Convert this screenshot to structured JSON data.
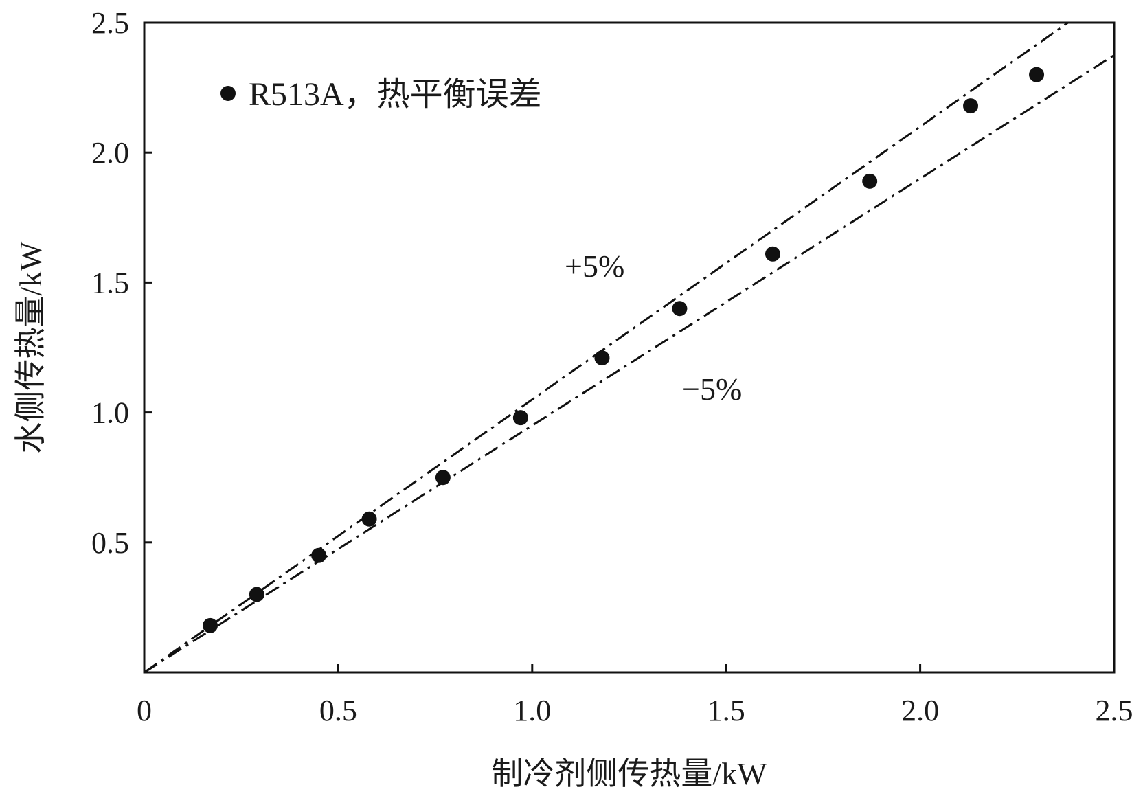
{
  "chart_data": {
    "type": "scatter",
    "title": "",
    "xlabel": "制冷剂侧传热量/kW",
    "ylabel": "水侧传热量/kW",
    "xlim": [
      0,
      2.5
    ],
    "ylim": [
      0,
      2.5
    ],
    "x_ticks": [
      {
        "value": 0,
        "label": "0"
      },
      {
        "value": 0.5,
        "label": "0.5"
      },
      {
        "value": 1.0,
        "label": "1.0"
      },
      {
        "value": 1.5,
        "label": "1.5"
      },
      {
        "value": 2.0,
        "label": "2.0"
      },
      {
        "value": 2.5,
        "label": "2.5"
      }
    ],
    "y_ticks": [
      {
        "value": 0.5,
        "label": "0.5"
      },
      {
        "value": 1.0,
        "label": "1.0"
      },
      {
        "value": 1.5,
        "label": "1.5"
      },
      {
        "value": 2.0,
        "label": "2.0"
      },
      {
        "value": 2.5,
        "label": "2.5"
      }
    ],
    "grid": false,
    "legend_position": "top-left",
    "series": [
      {
        "name": "R513A，热平衡误差",
        "color": "#111111",
        "marker": "filled-circle",
        "points": [
          {
            "x": 0.17,
            "y": 0.18
          },
          {
            "x": 0.29,
            "y": 0.3
          },
          {
            "x": 0.45,
            "y": 0.45
          },
          {
            "x": 0.58,
            "y": 0.59
          },
          {
            "x": 0.77,
            "y": 0.75
          },
          {
            "x": 0.97,
            "y": 0.98
          },
          {
            "x": 1.18,
            "y": 1.21
          },
          {
            "x": 1.38,
            "y": 1.4
          },
          {
            "x": 1.62,
            "y": 1.61
          },
          {
            "x": 1.87,
            "y": 1.89
          },
          {
            "x": 2.13,
            "y": 2.18
          },
          {
            "x": 2.3,
            "y": 2.3
          }
        ]
      }
    ],
    "reference_lines": [
      {
        "label": "+5%",
        "slope": 1.05,
        "style": "dash-dot"
      },
      {
        "label": "−5%",
        "slope": 0.95,
        "style": "dash-dot"
      }
    ]
  }
}
